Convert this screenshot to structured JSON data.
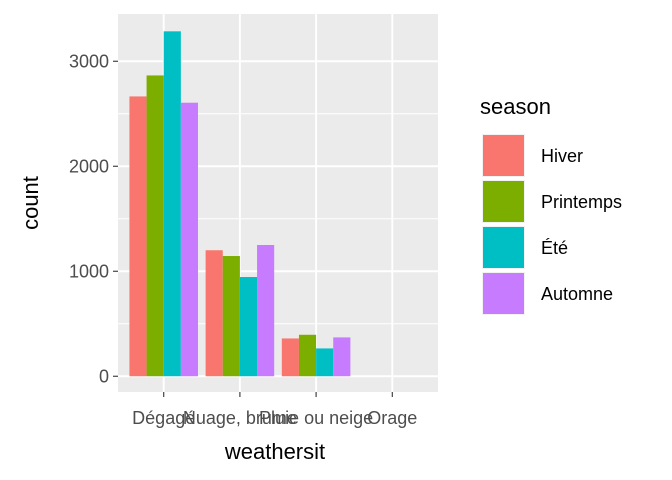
{
  "chart_data": {
    "type": "bar",
    "title": "",
    "xlabel": "weathersit",
    "ylabel": "count",
    "categories": [
      "Dégagé",
      "Nuage, brume",
      "Pluie ou neige",
      "Orage"
    ],
    "yticks": [
      0,
      1000,
      2000,
      3000
    ],
    "ylim": [
      -150,
      3450
    ],
    "grid": true,
    "legend_position": "right",
    "legend_title": "season",
    "series": [
      {
        "name": "Hiver",
        "color": "#F8766D",
        "values": [
          2665,
          1200,
          360,
          0
        ]
      },
      {
        "name": "Printemps",
        "color": "#7CAE00",
        "values": [
          2865,
          1145,
          395,
          0
        ]
      },
      {
        "name": "Été",
        "color": "#00BFC4",
        "values": [
          3285,
          945,
          265,
          0
        ]
      },
      {
        "name": "Automne",
        "color": "#C77CFF",
        "values": [
          2605,
          1250,
          370,
          0
        ]
      }
    ]
  }
}
